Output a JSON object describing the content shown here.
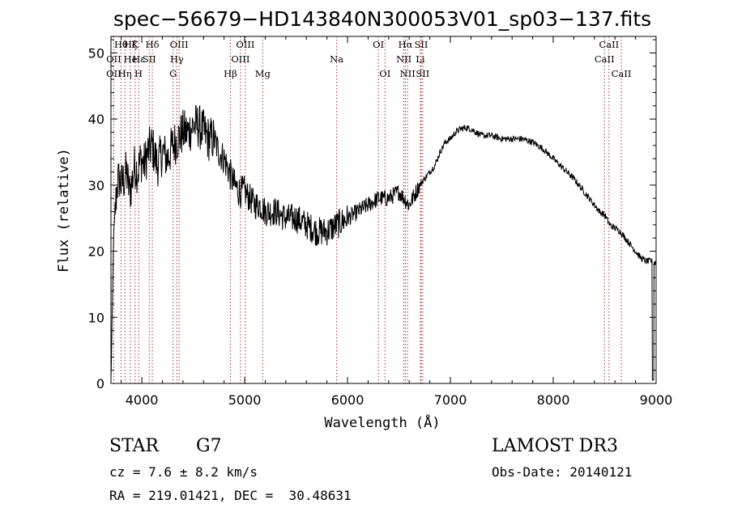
{
  "chart_data": {
    "type": "line",
    "title": "spec−56679−HD143840N300053V01_sp03−137.fits",
    "xlabel": "Wavelength (Å)",
    "ylabel": "Flux (relative)",
    "xlim": [
      3700,
      9000
    ],
    "ylim": [
      0,
      52.5
    ],
    "xticks": [
      4000,
      5000,
      6000,
      7000,
      8000,
      9000
    ],
    "yticks": [
      0,
      10,
      20,
      30,
      40,
      50
    ],
    "line_color": "#000000",
    "marker_color": "#a83232",
    "spectrum_envelope": {
      "x": [
        3700,
        3710,
        3725,
        3745,
        3760,
        3780,
        3800,
        3830,
        3850,
        3880,
        3900,
        3930,
        3960,
        3990,
        4020,
        4060,
        4100,
        4150,
        4200,
        4250,
        4300,
        4350,
        4400,
        4450,
        4500,
        4550,
        4600,
        4650,
        4700,
        4750,
        4800,
        4850,
        4900,
        4950,
        5000,
        5050,
        5100,
        5150,
        5200,
        5300,
        5400,
        5500,
        5600,
        5700,
        5800,
        5900,
        6000,
        6100,
        6200,
        6300,
        6350,
        6400,
        6450,
        6500,
        6550,
        6600,
        6650,
        6700,
        6750,
        6800,
        6850,
        6900,
        6950,
        7000,
        7050,
        7100,
        7150,
        7200,
        7250,
        7300,
        7400,
        7500,
        7600,
        7700,
        7800,
        7900,
        8000,
        8100,
        8200,
        8300,
        8400,
        8450,
        8500,
        8550,
        8600,
        8650,
        8700,
        8750,
        8800,
        8850,
        8900,
        8950,
        9000
      ],
      "y": [
        0.5,
        8,
        22,
        27,
        30,
        31,
        30,
        31,
        32,
        29,
        30,
        33,
        32,
        34,
        33,
        35,
        36,
        33,
        35,
        34,
        36,
        37,
        38,
        38,
        39,
        39,
        38,
        37,
        37,
        35,
        34,
        32,
        30,
        29,
        29,
        28,
        27,
        27,
        26,
        26,
        25,
        25,
        24,
        23,
        23,
        24,
        25,
        26,
        27,
        28,
        28,
        28,
        28.5,
        29,
        28,
        27,
        28.5,
        30,
        31,
        32,
        33,
        35,
        36.5,
        37,
        38,
        38.5,
        38.7,
        38.5,
        38,
        37.5,
        37.5,
        37,
        37,
        37,
        36.5,
        35.5,
        34,
        32.5,
        31,
        29,
        27,
        26,
        25.5,
        24,
        23.5,
        23,
        22,
        21,
        20,
        19,
        18.5,
        18.5,
        18.3
      ]
    },
    "line_markers": [
      {
        "label": "Hθ",
        "x": 3798,
        "row": 1
      },
      {
        "label": "Hη",
        "x": 3835,
        "row": 3
      },
      {
        "label": "OII",
        "x": 3727,
        "row": 2
      },
      {
        "label": "OII",
        "x": 3727,
        "row": 3
      },
      {
        "label": "Hζ",
        "x": 3889,
        "row": 1
      },
      {
        "label": "He",
        "x": 3889,
        "row": 2
      },
      {
        "label": "K",
        "x": 3934,
        "row": 1
      },
      {
        "label": "Hε",
        "x": 3970,
        "row": 2
      },
      {
        "label": "H",
        "x": 3968,
        "row": 3
      },
      {
        "label": "Hδ",
        "x": 4102,
        "row": 1
      },
      {
        "label": "SII",
        "x": 4072,
        "row": 2
      },
      {
        "label": "OIII",
        "x": 4363,
        "row": 1
      },
      {
        "label": "Hγ",
        "x": 4340,
        "row": 2
      },
      {
        "label": "G",
        "x": 4304,
        "row": 3
      },
      {
        "label": "Hβ",
        "x": 4861,
        "row": 3
      },
      {
        "label": "OIII",
        "x": 4959,
        "row": 2
      },
      {
        "label": "OIII",
        "x": 5007,
        "row": 1
      },
      {
        "label": "Mg",
        "x": 5175,
        "row": 3
      },
      {
        "label": "Na",
        "x": 5894,
        "row": 2
      },
      {
        "label": "OI",
        "x": 6300,
        "row": 1
      },
      {
        "label": "OI",
        "x": 6364,
        "row": 3
      },
      {
        "label": "Hα",
        "x": 6563,
        "row": 1
      },
      {
        "label": "NII",
        "x": 6548,
        "row": 2
      },
      {
        "label": "NII",
        "x": 6584,
        "row": 3
      },
      {
        "label": "SII",
        "x": 6716,
        "row": 1
      },
      {
        "label": "Li",
        "x": 6708,
        "row": 2
      },
      {
        "label": "SII",
        "x": 6731,
        "row": 3
      },
      {
        "label": "CaII",
        "x": 8498,
        "row": 2
      },
      {
        "label": "CaII",
        "x": 8542,
        "row": 1
      },
      {
        "label": "CaII",
        "x": 8662,
        "row": 3
      }
    ]
  },
  "info": {
    "object_type": "STAR",
    "subclass": "G7",
    "cz_text": "cz = 7.6 ± 8.2 km/s",
    "coords_text": "RA = 219.01421, DEC =  30.48631",
    "survey": "LAMOST DR3",
    "obs_date_text": "Obs-Date: 20140121"
  }
}
